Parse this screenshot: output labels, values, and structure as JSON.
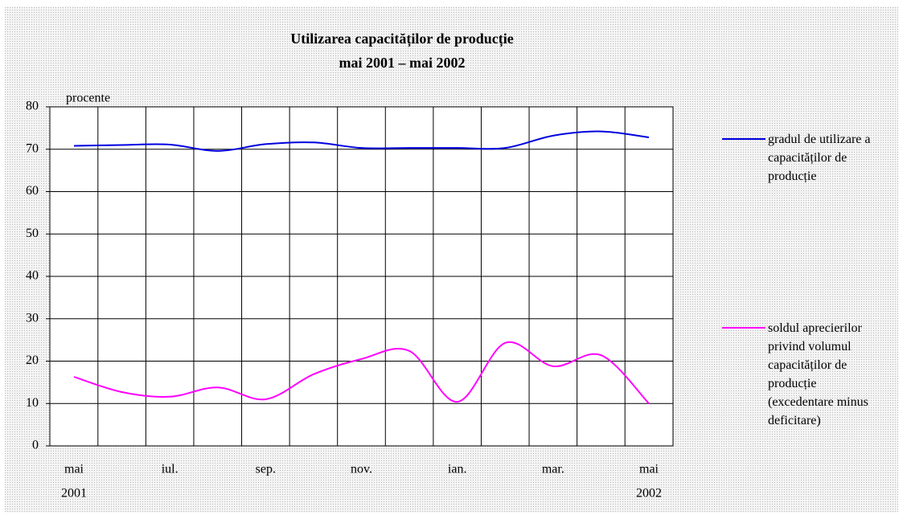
{
  "chart_data": {
    "type": "line",
    "title": "Utilizarea capacităților de producție",
    "subtitle": "mai 2001 – mai 2002",
    "y_label": "procente",
    "categories": [
      "mai",
      null,
      "iul.",
      null,
      "sep.",
      null,
      "nov.",
      null,
      "ian.",
      null,
      "mar.",
      null,
      "mai"
    ],
    "category_years": [
      "2001",
      null,
      null,
      null,
      null,
      null,
      null,
      null,
      null,
      null,
      null,
      null,
      "2002"
    ],
    "series": [
      {
        "name": "gradul de utilizare a capacităților de producție",
        "color": "#0000e0",
        "values": [
          70.8,
          71.0,
          71.1,
          69.6,
          71.2,
          71.6,
          70.3,
          70.3,
          70.3,
          70.3,
          73.2,
          74.2,
          72.8
        ]
      },
      {
        "name": "soldul aprecierilor privind volumul capacităților de producție (excedentare minus deficitare)",
        "color": "#ff00ff",
        "values": [
          16.3,
          12.7,
          11.6,
          13.8,
          11.0,
          16.9,
          20.5,
          22.4,
          10.4,
          24.3,
          18.8,
          21.4,
          10.0
        ]
      }
    ],
    "ylim": [
      0,
      80
    ],
    "yticks": [
      0,
      10,
      20,
      30,
      40,
      50,
      60,
      70,
      80
    ],
    "grid": true
  }
}
